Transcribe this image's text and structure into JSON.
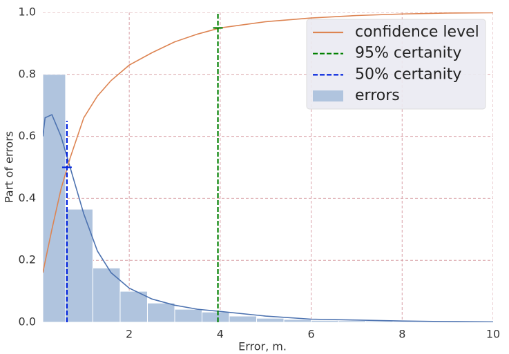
{
  "chart_data": {
    "type": "histogram",
    "xlabel": "Error, m.",
    "ylabel": "Part of errors",
    "xlim": [
      0.1,
      10
    ],
    "ylim": [
      0,
      1.0
    ],
    "xticks": [
      2,
      4,
      6,
      8,
      10
    ],
    "yticks": [
      {
        "value": 0,
        "label": "0.0"
      },
      0.2,
      0.4,
      0.6,
      0.8,
      {
        "value": 1.0,
        "label": "1.0"
      }
    ],
    "grid": true,
    "legend": "upper right",
    "histogram": {
      "name": "errors",
      "color": "#b0c4de",
      "bins": [
        0.1,
        0.6,
        1.2,
        1.8,
        2.4,
        3.0,
        3.6,
        4.2,
        4.8,
        5.4,
        6.0,
        6.6,
        7.2,
        7.8,
        8.4,
        9.0,
        9.6
      ],
      "values": [
        0.8,
        0.365,
        0.175,
        0.1,
        0.062,
        0.042,
        0.033,
        0.02,
        0.013,
        0.009,
        0.006,
        0.005,
        0.004,
        0.003,
        0.002,
        0.002
      ]
    },
    "lines": [
      {
        "color": "#4c72b0",
        "x": [
          0.1,
          0.15,
          0.3,
          0.5,
          0.7,
          1.0,
          1.3,
          1.6,
          2.0,
          2.5,
          3.0,
          3.5,
          4.0,
          5,
          6,
          7,
          8,
          9,
          10
        ],
        "values": [
          0.6,
          0.66,
          0.67,
          0.6,
          0.5,
          0.35,
          0.23,
          0.16,
          0.11,
          0.075,
          0.055,
          0.042,
          0.035,
          0.02,
          0.01,
          0.007,
          0.004,
          0.002,
          0.001
        ]
      },
      {
        "name": "confidence level",
        "color": "#dd8452",
        "x": [
          0.1,
          0.3,
          0.5,
          0.7,
          1.0,
          1.3,
          1.6,
          2.0,
          2.5,
          3.0,
          3.5,
          4.0,
          5,
          6,
          7,
          8,
          9,
          10
        ],
        "values": [
          0.16,
          0.3,
          0.43,
          0.53,
          0.66,
          0.73,
          0.78,
          0.83,
          0.87,
          0.905,
          0.93,
          0.95,
          0.97,
          0.982,
          0.99,
          0.995,
          0.998,
          0.999
        ]
      }
    ],
    "markers": [
      {
        "name": "95% certanity",
        "color": "#008000",
        "x": 3.95,
        "ymax": 1.0,
        "cross_y": 0.95
      },
      {
        "name": "50% certanity",
        "color": "#0022dd",
        "x": 0.63,
        "ymax": 0.65,
        "cross_y": 0.5
      }
    ]
  }
}
